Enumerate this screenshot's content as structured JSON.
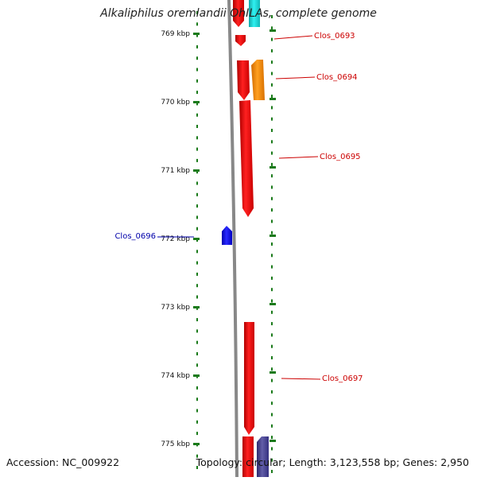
{
  "title": "Alkaliphilus oremlandii OhILAs, complete genome",
  "accession": "Accession: NC_009922",
  "summary": "Topology: circular; Length: 3,123,558 bp; Genes: 2,950",
  "colors": {
    "background": "#ffffff",
    "backbone": "#888888",
    "tick": "#1a7a1a",
    "gene_red": "#ff1a1a",
    "gene_cyan": "#22dddd",
    "gene_orange": "#ff8c00",
    "gene_blue": "#1414ff",
    "gene_purple": "#4a4690",
    "label_red": "#cc0000",
    "label_blue": "#0000aa"
  },
  "ticks": [
    {
      "label": "769 kbp",
      "kbp": 769
    },
    {
      "label": "770 kbp",
      "kbp": 770
    },
    {
      "label": "771 kbp",
      "kbp": 771
    },
    {
      "label": "772 kbp",
      "kbp": 772
    },
    {
      "label": "773 kbp",
      "kbp": 773
    },
    {
      "label": "774 kbp",
      "kbp": 774
    },
    {
      "label": "775 kbp",
      "kbp": 775
    }
  ],
  "genes": [
    {
      "id": "gene-red-top",
      "strand": "forward",
      "color": "red"
    },
    {
      "id": "gene-cyan-top",
      "strand": "reverse",
      "color": "cyan"
    },
    {
      "id": "gene-clos-0693",
      "label": "Clos_0693",
      "strand": "forward",
      "color": "red"
    },
    {
      "id": "gene-clos-0694",
      "label": "Clos_0694",
      "strand": "forward",
      "color": "red"
    },
    {
      "id": "gene-orange",
      "strand": "reverse",
      "color": "orange"
    },
    {
      "id": "gene-clos-0695",
      "label": "Clos_0695",
      "strand": "forward",
      "color": "red"
    },
    {
      "id": "gene-clos-0696",
      "label": "Clos_0696",
      "strand": "reverse",
      "color": "blue"
    },
    {
      "id": "gene-clos-0697",
      "label": "Clos_0697",
      "strand": "forward",
      "color": "red"
    },
    {
      "id": "gene-red-bottom",
      "strand": "forward",
      "color": "red"
    },
    {
      "id": "gene-purple-bottom",
      "strand": "reverse",
      "color": "purple"
    }
  ]
}
